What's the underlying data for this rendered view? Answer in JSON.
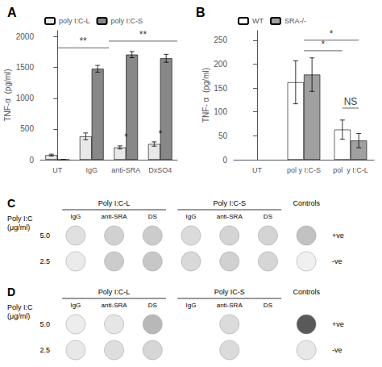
{
  "chart_data": [
    {
      "type": "bar",
      "title": "A",
      "ylabel": "TNF-α  (pg/ml)",
      "categories": [
        "UT",
        "IgG",
        "anti-SRA",
        "DxSO4"
      ],
      "series": [
        {
          "name": "poly I:C-L",
          "color": "#e8e8e8",
          "values": [
            75,
            380,
            200,
            255
          ],
          "errors": [
            15,
            55,
            25,
            35
          ]
        },
        {
          "name": "poly I:C-S",
          "color": "#888888",
          "values": [
            0,
            1480,
            1710,
            1650
          ],
          "errors": [
            0,
            55,
            50,
            65
          ]
        }
      ],
      "ylim": [
        0,
        2100
      ],
      "yticks": [
        0,
        500,
        1000,
        1500,
        2000
      ],
      "legend": "upper left",
      "grid": false,
      "annotations": [
        {
          "text": "**",
          "x1": 0.0,
          "x2": 1.5,
          "y": 1820
        },
        {
          "text": "**",
          "x1": 1.5,
          "x2": 3.5,
          "y": 1930
        },
        {
          "text": "*",
          "x": 2.0,
          "y": 260
        },
        {
          "text": "*",
          "x": 3.0,
          "y": 310
        }
      ]
    },
    {
      "type": "bar",
      "title": "B",
      "ylabel": "TNF- α  (pg/ml)",
      "categories": [
        "UT",
        "pol y I:C-S",
        "pol  y I:C-L"
      ],
      "series": [
        {
          "name": "WT",
          "color": "#ffffff",
          "values": [
            null,
            162,
            63
          ],
          "errors": [
            null,
            45,
            20
          ]
        },
        {
          "name": "SRA-/-",
          "color": "#a0a0a0",
          "values": [
            null,
            178,
            40
          ],
          "errors": [
            null,
            35,
            15
          ]
        }
      ],
      "ylim": [
        0,
        270
      ],
      "yticks": [
        0,
        50,
        100,
        150,
        200,
        250
      ],
      "legend": "upper left",
      "grid": false,
      "annotations": [
        {
          "text": "*",
          "x1": {
            "category": "pol y I:C-S"
          },
          "x2": {
            "category": "pol  y I:C-L",
            "series": "WT"
          },
          "y": 228
        },
        {
          "text": "*",
          "x1": {
            "category": "pol y I:C-S"
          },
          "x2": {
            "category": "pol  y I:C-L",
            "series": "SRA-/-"
          },
          "y": 250
        },
        {
          "text": "NS",
          "x1": {
            "category": "pol  y I:C-L",
            "series": "WT"
          },
          "x2": {
            "category": "pol  y I:C-L",
            "series": "SRA-/-"
          },
          "y": 108
        }
      ]
    },
    {
      "type": "dot_matrix",
      "title": "C",
      "ylabel": "Poly I:C\n(μg/ml)",
      "groups": [
        {
          "label": "Poly I:C-L",
          "categories": [
            "IgG",
            "anti-SRA",
            "DS"
          ]
        },
        {
          "label": "Poly I:C-S",
          "categories": [
            "IgG",
            "anti-SRA",
            "DS"
          ]
        },
        {
          "label": "Controls",
          "categories": [
            null
          ]
        }
      ],
      "rows": [
        "5.0",
        "2.5"
      ],
      "values": [
        [
          0.88,
          0.82,
          0.8,
          0.86,
          0.83,
          0.83,
          0.76
        ],
        [
          0.92,
          0.8,
          0.78,
          0.85,
          0.82,
          0.84,
          0.94
        ]
      ],
      "annotations": [
        {
          "text": "+ve",
          "row": "5.0"
        },
        {
          "text": "-ve",
          "row": "2.5"
        }
      ]
    },
    {
      "type": "dot_matrix",
      "title": "D",
      "ylabel": "Poly I:C\n(μg/ml)",
      "groups": [
        {
          "label": "Poly I:C-L",
          "categories": [
            "IgG",
            "anti-SRA",
            "DS"
          ]
        },
        {
          "label": "Poly IC-S",
          "categories": [
            "IgG",
            "anti-SRA",
            "DS"
          ]
        },
        {
          "label": "Controls",
          "categories": [
            null
          ]
        }
      ],
      "rows": [
        "5.0",
        "2.5"
      ],
      "values": [
        [
          0.93,
          0.9,
          0.72,
          0.0,
          0.86,
          0.0,
          0.35
        ],
        [
          0.91,
          0.87,
          0.84,
          0.0,
          0.86,
          0.0,
          0.91
        ]
      ],
      "annotations": [
        {
          "text": "+ve",
          "row": "5.0"
        },
        {
          "text": "-ve",
          "row": "2.5"
        }
      ]
    }
  ]
}
